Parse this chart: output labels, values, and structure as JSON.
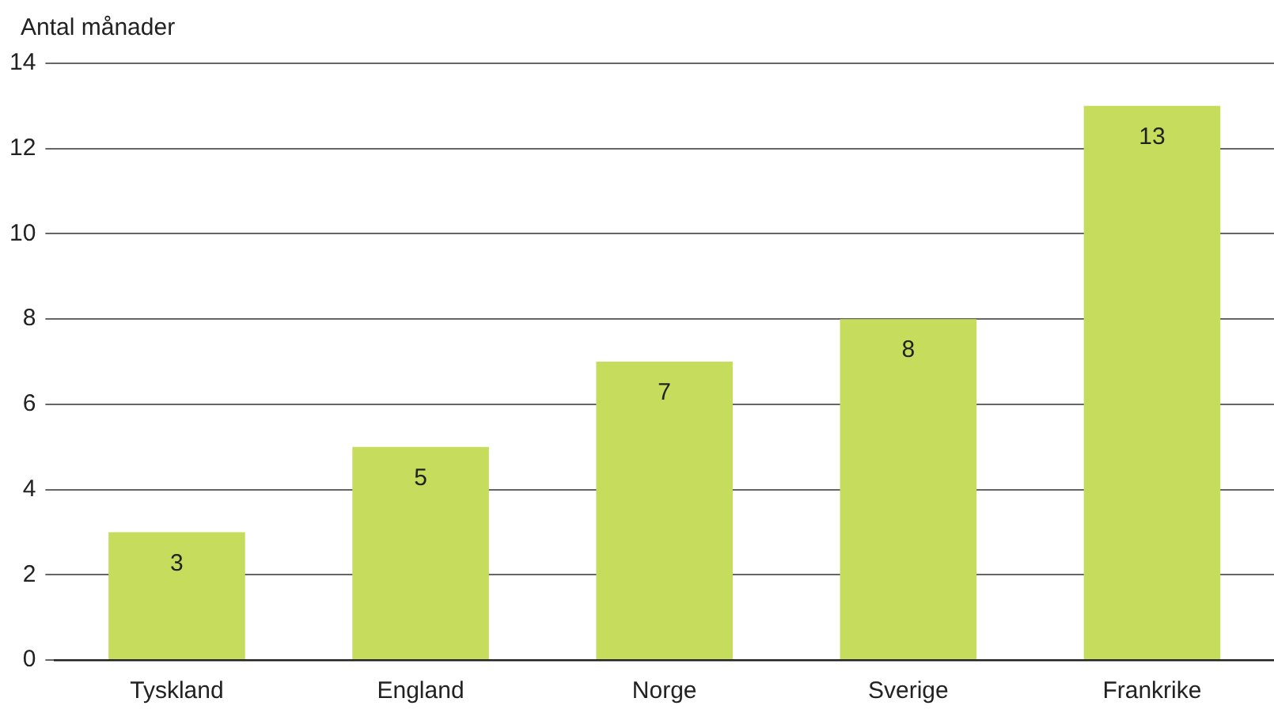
{
  "chart_data": {
    "type": "bar",
    "ylabel": "Antal månader",
    "categories": [
      "Tyskland",
      "England",
      "Norge",
      "Sverige",
      "Frankrike"
    ],
    "values": [
      3,
      5,
      7,
      8,
      13
    ],
    "color": "#c6dc5c",
    "ylim": [
      0,
      14
    ],
    "yticks": [
      0,
      2,
      4,
      6,
      8,
      10,
      12,
      14
    ],
    "grid": "y",
    "data_labels": true,
    "legend": false
  }
}
